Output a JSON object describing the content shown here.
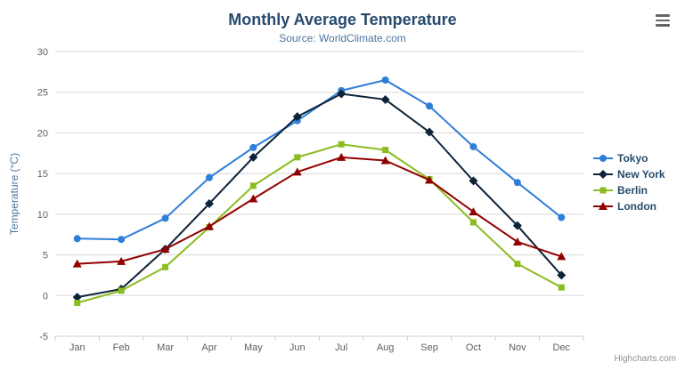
{
  "header": {
    "title": "Monthly Average Temperature",
    "subtitle": "Source: WorldClimate.com"
  },
  "chart_data": {
    "type": "line",
    "title": "Monthly Average Temperature",
    "subtitle": "Source: WorldClimate.com",
    "categories": [
      "Jan",
      "Feb",
      "Mar",
      "Apr",
      "May",
      "Jun",
      "Jul",
      "Aug",
      "Sep",
      "Oct",
      "Nov",
      "Dec"
    ],
    "series": [
      {
        "name": "Tokyo",
        "color": "#2f7ed8",
        "marker": "circle",
        "values": [
          7.0,
          6.9,
          9.5,
          14.5,
          18.2,
          21.5,
          25.2,
          26.5,
          23.3,
          18.3,
          13.9,
          9.6
        ]
      },
      {
        "name": "New York",
        "color": "#0d233a",
        "marker": "diamond",
        "values": [
          -0.2,
          0.8,
          5.7,
          11.3,
          17.0,
          22.0,
          24.8,
          24.1,
          20.1,
          14.1,
          8.6,
          2.5
        ]
      },
      {
        "name": "Berlin",
        "color": "#8bbc21",
        "marker": "square",
        "values": [
          -0.9,
          0.6,
          3.5,
          8.4,
          13.5,
          17.0,
          18.6,
          17.9,
          14.3,
          9.0,
          3.9,
          1.0
        ]
      },
      {
        "name": "London",
        "color": "#910000",
        "marker": "triangle",
        "values": [
          3.9,
          4.2,
          5.7,
          8.5,
          11.9,
          15.2,
          17.0,
          16.6,
          14.2,
          10.3,
          6.6,
          4.8
        ]
      }
    ],
    "xlabel": "",
    "ylabel": "Temperature (°C)",
    "ylim": [
      -5,
      30
    ],
    "ytick_step": 5,
    "grid": true,
    "legend_position": "right"
  },
  "colors": {
    "title": "#274b6d",
    "subtitle": "#4d759e",
    "axis_label": "#606060",
    "axis_title": "#4d759e",
    "gridline": "#d8d8d8",
    "axis_line": "#c0d0e0",
    "credits": "#909090"
  },
  "icons": {
    "export_menu": "hamburger-menu"
  },
  "credits": "Highcharts.com"
}
